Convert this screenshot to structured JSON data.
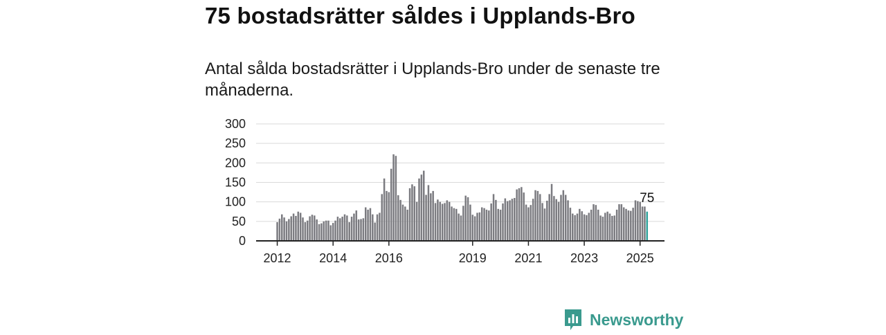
{
  "header": {
    "title": "75 bostadsrätter såldes i Upplands-Bro",
    "subtitle": "Antal sålda bostadsrätter i Upplands-Bro under de senaste tre månaderna."
  },
  "brand": {
    "name": "Newsworthy",
    "icon": "newsworthy-logo-icon",
    "color": "#3a9a8e"
  },
  "colors": {
    "bar": "#7b7b80",
    "highlight": "#2fa39b",
    "grid": "#d9d9d9",
    "axis": "#222222"
  },
  "chart_data": {
    "type": "bar",
    "title": "",
    "xlabel": "",
    "ylabel": "",
    "ylim": [
      0,
      300
    ],
    "yticks": [
      "0",
      "50",
      "100",
      "150",
      "200",
      "250",
      "300"
    ],
    "xticks": [
      "2012",
      "2014",
      "2016",
      "2019",
      "2021",
      "2023",
      "2025"
    ],
    "grid": true,
    "start": "2012-01",
    "frequency": "monthly",
    "series": [
      {
        "values": [
          48,
          57,
          68,
          60,
          50,
          56,
          63,
          70,
          64,
          75,
          72,
          60,
          48,
          52,
          63,
          67,
          65,
          55,
          43,
          45,
          50,
          52,
          52,
          40,
          46,
          52,
          62,
          58,
          62,
          68,
          65,
          48,
          62,
          70,
          78,
          55,
          56,
          58,
          86,
          80,
          84,
          68,
          47,
          68,
          72,
          120,
          160,
          128,
          125,
          185,
          222,
          218,
          117,
          105,
          93,
          88,
          80,
          135,
          145,
          140,
          100,
          160,
          170,
          180,
          118,
          143,
          122,
          128,
          97,
          106,
          100,
          95,
          97,
          104,
          100,
          88,
          84,
          82,
          70,
          65,
          90,
          116,
          112,
          93,
          67,
          63,
          72,
          73,
          86,
          84,
          80,
          78,
          96,
          120,
          105,
          82,
          80,
          96,
          109,
          102,
          104,
          108,
          110,
          132,
          135,
          138,
          124,
          93,
          86,
          92,
          108,
          130,
          128,
          120,
          97,
          83,
          103,
          120,
          146,
          115,
          107,
          100,
          118,
          130,
          118,
          104,
          85,
          70,
          66,
          70,
          82,
          76,
          68,
          66,
          72,
          80,
          94,
          92,
          80,
          65,
          62,
          72,
          75,
          70,
          64,
          65,
          80,
          94,
          94,
          86,
          82,
          78,
          77,
          85,
          104,
          102,
          100,
          88,
          88,
          75
        ]
      }
    ],
    "annotation": {
      "label": "75"
    }
  }
}
